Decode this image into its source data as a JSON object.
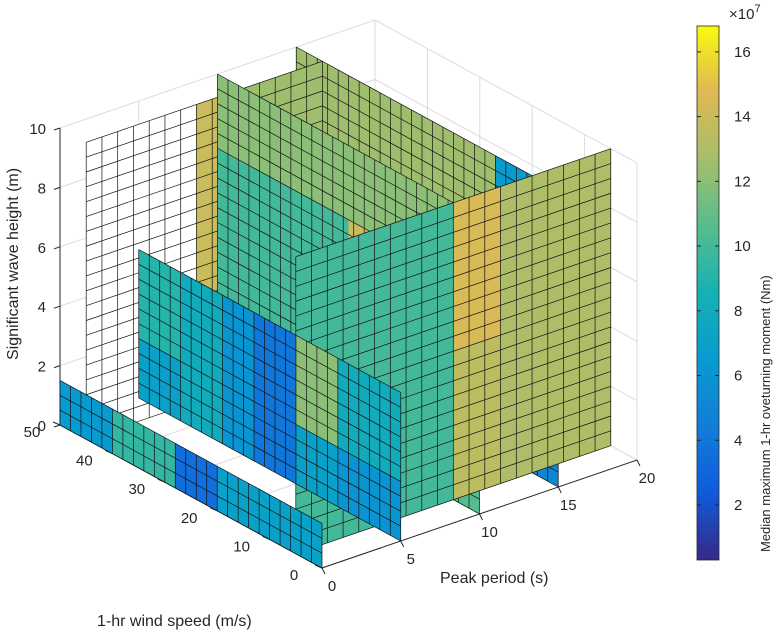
{
  "chart_data": {
    "type": "slice3d",
    "xlabel": "Peak period (s)",
    "ylabel": "1-hr wind speed (m/s)",
    "zlabel": "Significant wave height (m)",
    "xlim": [
      0,
      20
    ],
    "ylim": [
      0,
      50
    ],
    "zlim": [
      0,
      10
    ],
    "xticks": [
      "0",
      "5",
      "10",
      "15",
      "20"
    ],
    "yticks": [
      "0",
      "10",
      "20",
      "30",
      "40",
      "50"
    ],
    "zticks": [
      "0",
      "2",
      "4",
      "6",
      "8",
      "10"
    ],
    "grid": true,
    "colorbar": {
      "label": "Median maximum 1-hr oveturning moment (Nm)",
      "exponent": "×10",
      "exponent_power": "7",
      "ticks": [
        "2",
        "4",
        "6",
        "8",
        "10",
        "12",
        "14",
        "16"
      ],
      "tick_values": [
        2,
        4,
        6,
        8,
        10,
        12,
        14,
        16
      ],
      "range": [
        0.3,
        16.8
      ],
      "colormap": "parula"
    },
    "slices": [
      {
        "orientation": "x",
        "at": 0,
        "cells": [
          [
            0,
            12,
            7,
            0,
            1.5,
            11
          ],
          [
            12,
            20,
            7,
            0,
            1.5,
            8
          ],
          [
            20,
            28,
            3.5,
            0,
            1.5,
            3
          ],
          [
            28,
            40,
            9.5,
            0,
            1.5,
            9
          ],
          [
            40,
            50,
            6.5,
            0,
            1.5,
            5
          ]
        ]
      },
      {
        "orientation": "x",
        "at": 5,
        "cells": [
          [
            0,
            12,
            6,
            0,
            2,
            12
          ],
          [
            12,
            20,
            7,
            0,
            2,
            10
          ],
          [
            20,
            28,
            4,
            0,
            2,
            3
          ],
          [
            28,
            34,
            6,
            0,
            2,
            5
          ],
          [
            34,
            42,
            8,
            0,
            2,
            7
          ],
          [
            42,
            50,
            7,
            0,
            2,
            6
          ],
          [
            0,
            12,
            8,
            2,
            5,
            11
          ],
          [
            12,
            20,
            12,
            2,
            5,
            13
          ],
          [
            20,
            28,
            4,
            2,
            5,
            3
          ],
          [
            28,
            34,
            6,
            2,
            5,
            5
          ],
          [
            34,
            42,
            8,
            2,
            5,
            7
          ],
          [
            42,
            50,
            9,
            2,
            5,
            8
          ]
        ]
      },
      {
        "orientation": "x",
        "at": 10,
        "cells": [
          [
            0,
            12,
            10.5,
            0,
            2.5,
            11
          ],
          [
            12,
            25,
            13.5,
            0,
            2.5,
            13
          ],
          [
            25,
            50,
            9.5,
            0,
            2.5,
            9
          ],
          [
            0,
            12,
            12,
            2.5,
            5,
            12
          ],
          [
            12,
            25,
            14.5,
            2.5,
            5,
            14
          ],
          [
            25,
            50,
            10,
            2.5,
            5,
            10
          ],
          [
            0,
            25,
            14,
            5,
            7.5,
            14
          ],
          [
            25,
            50,
            10,
            5,
            7.5,
            10
          ],
          [
            0,
            25,
            12,
            7.5,
            10,
            12
          ],
          [
            25,
            50,
            12,
            7.5,
            10,
            12
          ]
        ]
      },
      {
        "orientation": "x",
        "at": 15,
        "cells": [
          [
            0,
            12,
            5,
            0,
            2.5,
            5
          ],
          [
            12,
            25,
            9.5,
            0,
            2.5,
            9
          ],
          [
            25,
            50,
            12.5,
            0,
            2.5,
            12
          ],
          [
            0,
            12,
            6,
            2.5,
            5,
            6
          ],
          [
            12,
            25,
            9,
            2.5,
            5,
            9
          ],
          [
            25,
            50,
            12.5,
            2.5,
            5,
            12
          ],
          [
            0,
            12,
            5,
            5,
            7.5,
            5
          ],
          [
            12,
            25,
            9,
            5,
            7.5,
            9
          ],
          [
            25,
            50,
            12.5,
            5,
            7.5,
            12
          ],
          [
            0,
            12,
            6.5,
            7.5,
            10,
            6
          ],
          [
            12,
            25,
            12.5,
            7.5,
            10,
            12
          ],
          [
            25,
            50,
            12.5,
            7.5,
            10,
            12
          ]
        ]
      },
      {
        "orientation": "y",
        "at": 5,
        "cells": [
          [
            0,
            4,
            10,
            0,
            10,
            10
          ],
          [
            4,
            10,
            10,
            0,
            10,
            10
          ],
          [
            10,
            13,
            13.5,
            0,
            5,
            13
          ],
          [
            13,
            20,
            13,
            0,
            10,
            13
          ],
          [
            10,
            13,
            14.5,
            5,
            10,
            14
          ]
        ]
      },
      {
        "orientation": "y",
        "at": 45,
        "cells": [
          [
            0,
            3,
            null,
            0,
            10,
            0
          ],
          [
            3,
            5,
            null,
            0,
            10,
            0
          ],
          [
            5,
            7,
            null,
            0,
            10,
            0
          ],
          [
            7,
            10,
            14,
            0,
            10,
            14
          ],
          [
            10,
            15,
            13,
            0,
            3,
            13
          ],
          [
            10,
            15,
            12.5,
            3,
            10,
            12
          ]
        ]
      }
    ]
  }
}
